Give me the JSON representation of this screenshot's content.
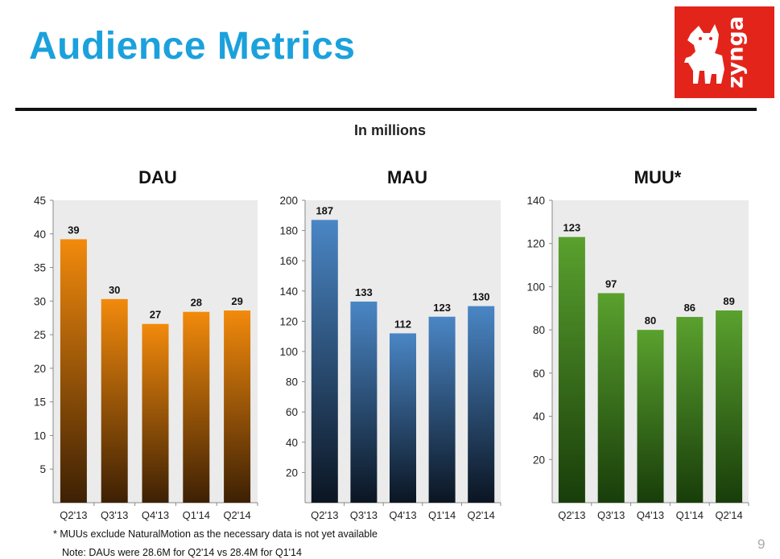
{
  "slide": {
    "title": "Audience Metrics",
    "subtitle": "In millions",
    "footnote": "* MUUs exclude NaturalMotion as the necessary data is not yet available",
    "note": "Note:  DAUs were 28.6M for Q2'14 vs 28.4M for Q1'14",
    "page_number": "9",
    "logo_text": "zynga"
  },
  "colors": {
    "title": "#1ba1dc",
    "dau_bar": "#f28a0c",
    "mau_bar": "#4a86c5",
    "muu_bar": "#5aa12e",
    "plot_bg": "#ebebeb",
    "logo_bg": "#e3241b"
  },
  "chart_data": [
    {
      "type": "bar",
      "title": "DAU",
      "categories": [
        "Q2'13",
        "Q3'13",
        "Q4'13",
        "Q1'14",
        "Q2'14"
      ],
      "values": [
        39.2,
        30.3,
        26.6,
        28.4,
        28.6
      ],
      "labels": [
        "39",
        "30",
        "27",
        "28",
        "29"
      ],
      "ylim": [
        0,
        45
      ],
      "yticks": [
        5,
        10,
        15,
        20,
        25,
        30,
        35,
        40,
        45
      ],
      "grid": false,
      "gradient": [
        "#f28a0c",
        "#3d2004"
      ]
    },
    {
      "type": "bar",
      "title": "MAU",
      "categories": [
        "Q2'13",
        "Q3'13",
        "Q4'13",
        "Q1'14",
        "Q2'14"
      ],
      "values": [
        187,
        133,
        112,
        123,
        130
      ],
      "labels": [
        "187",
        "133",
        "112",
        "123",
        "130"
      ],
      "ylim": [
        0,
        200
      ],
      "yticks": [
        20,
        40,
        60,
        80,
        100,
        120,
        140,
        160,
        180,
        200
      ],
      "grid": false,
      "gradient": [
        "#4a86c5",
        "#0b1522"
      ]
    },
    {
      "type": "bar",
      "title": "MUU*",
      "categories": [
        "Q2'13",
        "Q3'13",
        "Q4'13",
        "Q1'14",
        "Q2'14"
      ],
      "values": [
        123,
        97,
        80,
        86,
        89
      ],
      "labels": [
        "123",
        "97",
        "80",
        "86",
        "89"
      ],
      "ylim": [
        0,
        140
      ],
      "yticks": [
        20,
        40,
        60,
        80,
        100,
        120,
        140
      ],
      "grid": false,
      "gradient": [
        "#5aa12e",
        "#183d0a"
      ]
    }
  ]
}
